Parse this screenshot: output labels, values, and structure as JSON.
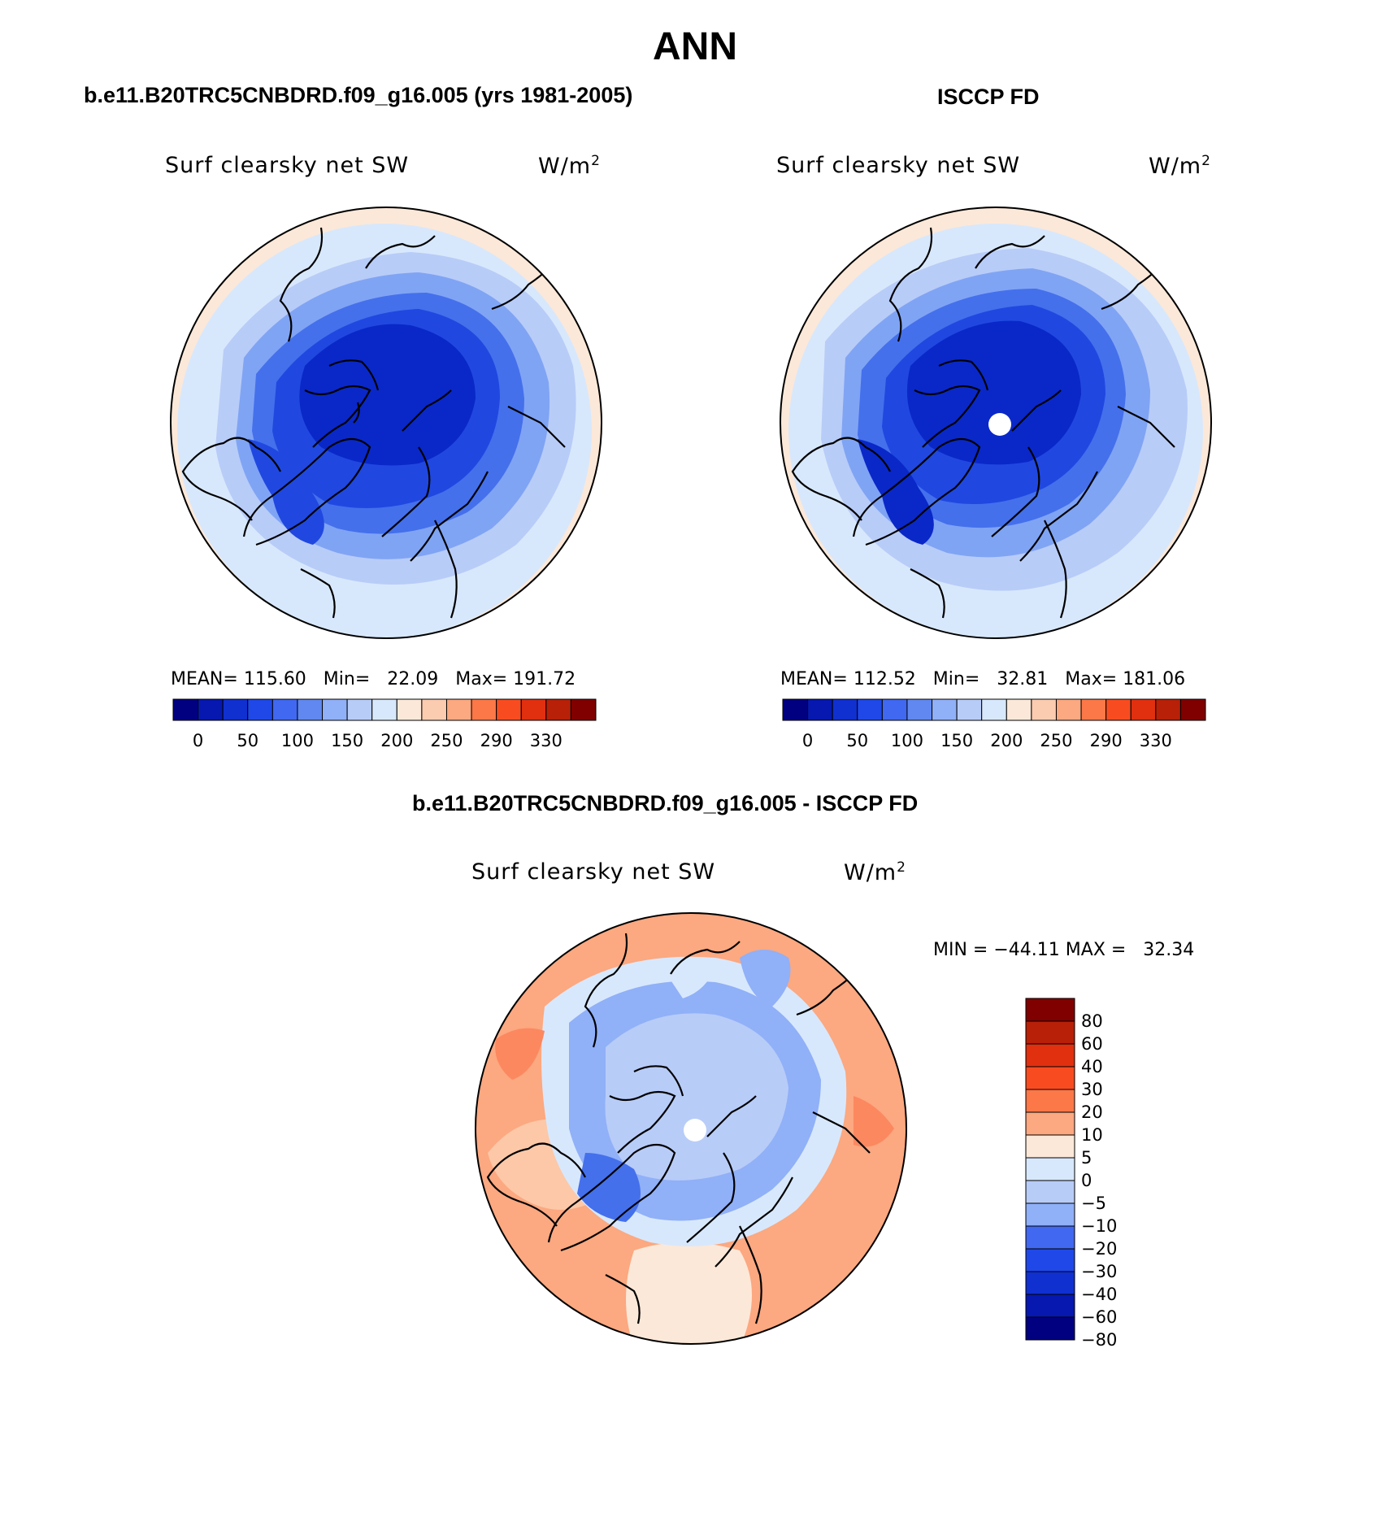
{
  "main_title": "ANN",
  "panel_left": {
    "title": "b.e11.B20TRC5CNBDRD.f09_g16.005 (yrs 1981-2005)",
    "var_label": "Surf clearsky net SW",
    "unit_base": "W/m",
    "unit_exp": "2",
    "stats": {
      "mean_label": "MEAN=",
      "mean": "115.60",
      "min_label": "Min=",
      "min": "22.09",
      "max_label": "Max=",
      "max": "191.72"
    }
  },
  "panel_right": {
    "title": "ISCCP FD",
    "var_label": "Surf clearsky net SW",
    "unit_base": "W/m",
    "unit_exp": "2",
    "stats": {
      "mean_label": "MEAN=",
      "mean": "112.52",
      "min_label": "Min=",
      "min": "32.81",
      "max_label": "Max=",
      "max": "181.06"
    }
  },
  "panel_diff": {
    "title": "b.e11.B20TRC5CNBDRD.f09_g16.005 - ISCCP FD",
    "var_label": "Surf clearsky net SW",
    "unit_base": "W/m",
    "unit_exp": "2",
    "stats": {
      "min_label": "MIN =",
      "min": "−44.11",
      "max_label": "MAX =",
      "max": "32.34"
    }
  },
  "colorbar_abs": {
    "colors": [
      "#000080",
      "#0618b0",
      "#1030d0",
      "#2048e8",
      "#4068f0",
      "#6088f0",
      "#90b0f8",
      "#b8ccf8",
      "#d8e8fc",
      "#fce8d8",
      "#fcccb0",
      "#fca880",
      "#fc7848",
      "#f84c20",
      "#e03010",
      "#b82008",
      "#800000"
    ],
    "labels": [
      "0",
      "50",
      "100",
      "150",
      "200",
      "250",
      "290",
      "330"
    ]
  },
  "colorbar_diff": {
    "colors": [
      "#800000",
      "#b82008",
      "#e03010",
      "#f84c20",
      "#fc7848",
      "#fca880",
      "#fce8d8",
      "#d8e8fc",
      "#b8ccf8",
      "#90b0f8",
      "#4068f0",
      "#2048e8",
      "#1030d0",
      "#0618b0",
      "#000080"
    ],
    "labels": [
      "80",
      "60",
      "40",
      "30",
      "20",
      "10",
      "5",
      "0",
      "−5",
      "−10",
      "−20",
      "−30",
      "−40",
      "−60",
      "−80"
    ]
  },
  "map_fields": {
    "left": {
      "center": "#0a28c8",
      "ring1": "#2048e0",
      "ring2": "#4470ec",
      "ring3": "#80a4f4",
      "ring4": "#b8ccf8",
      "ring5": "#d8e8fc",
      "edge": "#fce8d8"
    },
    "right": {
      "center": "#0a28c8",
      "ring1": "#2048e0",
      "ring2": "#4470ec",
      "ring3": "#80a4f4",
      "ring4": "#b8ccf8",
      "ring5": "#d8e8fc",
      "edge": "#fce8d8",
      "pole_mask": "#ffffff"
    },
    "diff": {
      "center": "#b8ccf8",
      "ring1": "#90b0f8",
      "ring2": "#d8e8fc",
      "ring3": "#fce8d8",
      "ring4": "#fcb898",
      "edge": "#fca880",
      "pole_mask": "#ffffff"
    }
  }
}
